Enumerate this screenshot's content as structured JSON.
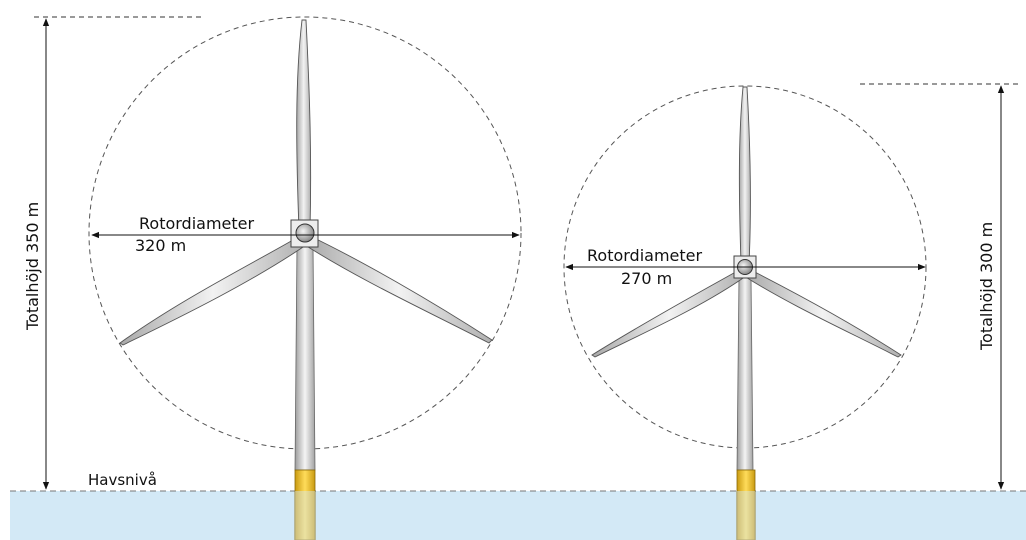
{
  "sea_level_label": "Havsnivå",
  "turbine_large": {
    "rotor_label_line1": "Rotordiameter",
    "rotor_label_line2": "320 m",
    "height_label": "Totalhöjd 350 m"
  },
  "turbine_small": {
    "rotor_label_line1": "Rotordiameter",
    "rotor_label_line2": "270 m",
    "height_label": "Totalhöjd 300 m"
  },
  "colors": {
    "sea": "#d3e9f6",
    "foundation": "#f2c431",
    "tower": "#d6d6d6",
    "blade": "#dcdcdc",
    "dashed": "#555555"
  }
}
